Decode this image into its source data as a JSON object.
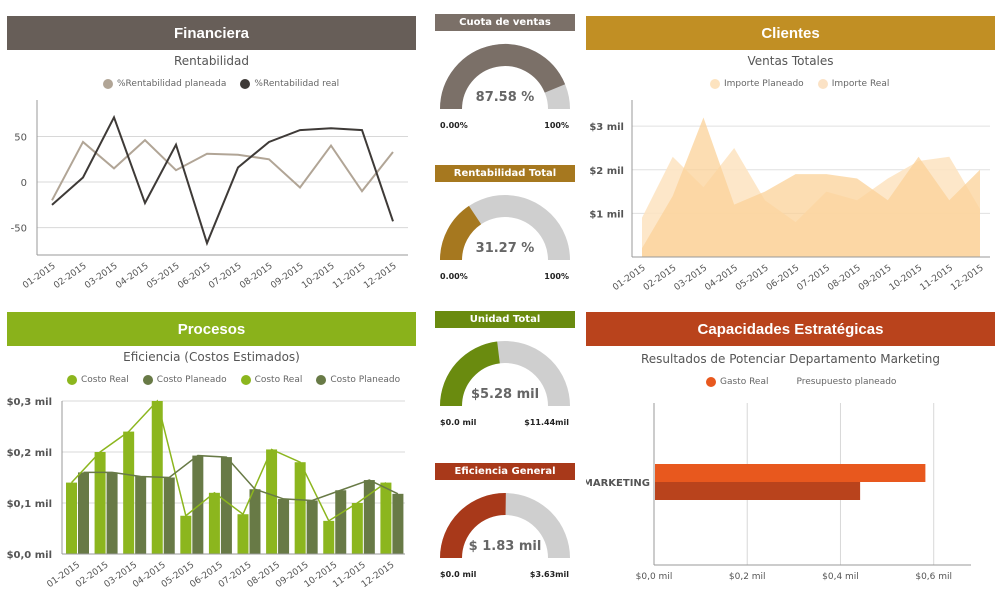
{
  "financiera": {
    "header": "Financiera",
    "color": "#675e58",
    "subtitle": "Rentabilidad",
    "legend": [
      {
        "label": "%Rentabilidad planeada",
        "color": "#b1a596"
      },
      {
        "label": "%Rentabilidad real",
        "color": "#3e3a37"
      }
    ]
  },
  "clientes": {
    "header": "Clientes",
    "color": "#c18f24",
    "subtitle": "Ventas Totales",
    "legend": [
      {
        "label": "Importe Planeado",
        "color": "#fbe2c5"
      },
      {
        "label": "Importe Real",
        "color": "#fbe2c5"
      }
    ]
  },
  "procesos": {
    "header": "Procesos",
    "color": "#8ab21b",
    "subtitle": "Eficiencia (Costos Estimados)",
    "legend": [
      {
        "label": "Costo Real",
        "color": "#8cb61e"
      },
      {
        "label": "Costo Planeado",
        "color": "#687a46"
      },
      {
        "label": "Costo Real",
        "color": "#8cb61e"
      },
      {
        "label": "Costo Planeado",
        "color": "#687a46"
      }
    ]
  },
  "capacidades": {
    "header": "Capacidades Estratégicas",
    "color": "#b9431c",
    "subtitle": "Resultados de Potenciar Departamento Marketing",
    "legend": [
      {
        "label": "Gasto Real",
        "color": "#e8581e"
      },
      {
        "label": "Presupuesto planeado",
        "color": "#ffffff"
      }
    ]
  },
  "gauges": [
    {
      "title": "Cuota de ventas",
      "header_color": "#7b7068",
      "fill_color": "#7b7068",
      "value_label": "87.58 %",
      "fraction": 0.8758,
      "min_label": "0.00%",
      "max_label": "100%"
    },
    {
      "title": "Rentabilidad Total",
      "header_color": "#a6781f",
      "fill_color": "#a6781f",
      "value_label": "31.27 %",
      "fraction": 0.3127,
      "min_label": "0.00%",
      "max_label": "100%"
    },
    {
      "title": "Unidad Total",
      "header_color": "#6a8b0f",
      "fill_color": "#6a8b0f",
      "value_label": "$5.28 mil",
      "fraction": 0.4615,
      "min_label": "$0.0 mil",
      "max_label": "$11.44mil"
    },
    {
      "title": "Eficiencia General",
      "header_color": "#a8391a",
      "fill_color": "#a8391a",
      "value_label": "$ 1.83 mil",
      "fraction": 0.5041,
      "min_label": "$0.0 mil",
      "max_label": "$3.63mil"
    }
  ],
  "chart_data": [
    {
      "type": "line",
      "title": "Rentabilidad",
      "categories": [
        "01-2015",
        "02-2015",
        "03-2015",
        "04-2015",
        "05-2015",
        "06-2015",
        "07-2015",
        "08-2015",
        "09-2015",
        "10-2015",
        "11-2015",
        "12-2015"
      ],
      "yticks": [
        "50",
        "0",
        "-50"
      ],
      "ylim": [
        -80,
        90
      ],
      "series": [
        {
          "name": "%Rentabilidad planeada",
          "color": "#b1a596",
          "values": [
            -20,
            44,
            15,
            46,
            13,
            31,
            30,
            25,
            -6,
            40,
            -10,
            33
          ]
        },
        {
          "name": "%Rentabilidad real",
          "color": "#3e3a37",
          "values": [
            -25,
            5,
            71,
            -23,
            41,
            -67,
            16,
            44,
            57,
            59,
            57,
            -43
          ]
        }
      ]
    },
    {
      "type": "area",
      "title": "Ventas Totales",
      "categories": [
        "01-2015",
        "02-2015",
        "03-2015",
        "04-2015",
        "05-2015",
        "06-2015",
        "07-2015",
        "08-2015",
        "09-2015",
        "10-2015",
        "11-2015",
        "12-2015"
      ],
      "yticks": [
        "$3 mil",
        "$2 mil",
        "$1 mil"
      ],
      "ylim": [
        0,
        3.6
      ],
      "series": [
        {
          "name": "Importe Planeado",
          "color": "#fde3bf",
          "values": [
            0.9,
            2.3,
            1.6,
            2.5,
            1.3,
            0.8,
            1.5,
            1.3,
            1.8,
            2.2,
            2.3,
            1.1
          ]
        },
        {
          "name": "Importe Real",
          "color": "#fbd298",
          "values": [
            0.2,
            1.4,
            3.2,
            1.2,
            1.5,
            1.9,
            1.9,
            1.8,
            1.3,
            2.3,
            1.3,
            2.0
          ]
        }
      ]
    },
    {
      "type": "bar",
      "title": "Eficiencia (Costos Estimados)",
      "categories": [
        "01-2015",
        "02-2015",
        "03-2015",
        "04-2015",
        "05-2015",
        "06-2015",
        "07-2015",
        "08-2015",
        "09-2015",
        "10-2015",
        "11-2015",
        "12-2015"
      ],
      "yticks": [
        "$0,3 mil",
        "$0,2 mil",
        "$0,1 mil",
        "$0,0 mil"
      ],
      "ylim": [
        0,
        0.3
      ],
      "series": [
        {
          "name": "Costo Real",
          "color": "#8cb61e",
          "values": [
            0.14,
            0.2,
            0.24,
            0.3,
            0.075,
            0.12,
            0.078,
            0.205,
            0.18,
            0.065,
            0.1,
            0.14
          ]
        },
        {
          "name": "Costo Planeado",
          "color": "#687a46",
          "values": [
            0.16,
            0.16,
            0.152,
            0.15,
            0.193,
            0.19,
            0.127,
            0.108,
            0.105,
            0.125,
            0.145,
            0.118
          ]
        }
      ]
    },
    {
      "type": "bar",
      "orientation": "horizontal",
      "title": "Resultados de Potenciar Departamento Marketing",
      "categories": [
        "MARKETING"
      ],
      "xticks": [
        "$0,0 mil",
        "$0,2 mil",
        "$0,4 mil",
        "$0,6 mil"
      ],
      "xlim": [
        0,
        0.68
      ],
      "series": [
        {
          "name": "Gasto Real",
          "color": "#e8581e",
          "values": [
            0.58
          ]
        },
        {
          "name": "Presupuesto planeado",
          "color": "#b9431c",
          "values": [
            0.44
          ]
        }
      ]
    }
  ]
}
